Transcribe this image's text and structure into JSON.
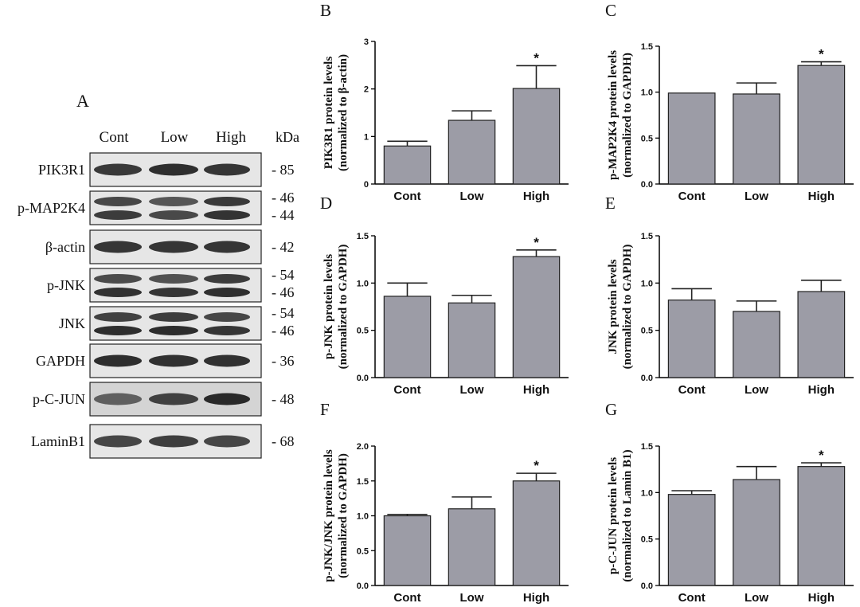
{
  "blot": {
    "panel_letter": "A",
    "lanes": [
      "Cont",
      "Low",
      "High"
    ],
    "unit": "kDa",
    "rows": [
      {
        "label": "PIK3R1",
        "markers": [
          "85"
        ],
        "bands": 1
      },
      {
        "label": "p-MAP2K4",
        "markers": [
          "46",
          "44"
        ],
        "bands": 2
      },
      {
        "label": "β-actin",
        "markers": [
          "42"
        ],
        "bands": 1
      },
      {
        "label": "p-JNK",
        "markers": [
          "54",
          "46"
        ],
        "bands": 2
      },
      {
        "label": "JNK",
        "markers": [
          "54",
          "46"
        ],
        "bands": 2
      },
      {
        "label": "GAPDH",
        "markers": [
          "36"
        ],
        "bands": 1
      },
      {
        "label": "p-C-JUN",
        "markers": [
          "48"
        ],
        "bands": 1
      },
      {
        "label": "LaminB1",
        "markers": [
          "68"
        ],
        "bands": 1
      }
    ]
  },
  "colors": {
    "bar_fill": "#9c9ca6",
    "axis": "#000000",
    "text": "#111111"
  },
  "chart_data": [
    {
      "panel": "B",
      "type": "bar",
      "categories": [
        "Cont",
        "Low",
        "High"
      ],
      "values": [
        0.8,
        1.34,
        2.01
      ],
      "errors": [
        0.1,
        0.2,
        0.48
      ],
      "significance": [
        "",
        "",
        "*"
      ],
      "ylabel": [
        "PIK3R1 protein levels",
        "(normalized to β-actin)"
      ],
      "ylim": [
        0,
        3
      ],
      "yticks": [
        "0",
        "1",
        "2",
        "3"
      ]
    },
    {
      "panel": "C",
      "type": "bar",
      "categories": [
        "Cont",
        "Low",
        "High"
      ],
      "values": [
        0.99,
        0.98,
        1.29
      ],
      "errors": [
        0,
        0.12,
        0.04
      ],
      "significance": [
        "",
        "",
        "*"
      ],
      "ylabel": [
        "p-MAP2K4 protein levels",
        "(normalized to GAPDH)"
      ],
      "ylim": [
        0,
        1.5
      ],
      "yticks": [
        "0.0",
        "0.5",
        "1.0",
        "1.5"
      ]
    },
    {
      "panel": "D",
      "type": "bar",
      "categories": [
        "Cont",
        "Low",
        "High"
      ],
      "values": [
        0.86,
        0.79,
        1.28
      ],
      "errors": [
        0.14,
        0.08,
        0.07
      ],
      "significance": [
        "",
        "",
        "*"
      ],
      "ylabel": [
        "p-JNK protein levels",
        "(normalized to GAPDH)"
      ],
      "ylim": [
        0,
        1.5
      ],
      "yticks": [
        "0.0",
        "0.5",
        "1.0",
        "1.5"
      ]
    },
    {
      "panel": "E",
      "type": "bar",
      "categories": [
        "Cont",
        "Low",
        "High"
      ],
      "values": [
        0.82,
        0.7,
        0.91
      ],
      "errors": [
        0.12,
        0.11,
        0.12
      ],
      "significance": [
        "",
        "",
        ""
      ],
      "ylabel": [
        "JNK protein levels",
        "(normalized to GAPDH)"
      ],
      "ylim": [
        0,
        1.5
      ],
      "yticks": [
        "0.0",
        "0.5",
        "1.0",
        "1.5"
      ]
    },
    {
      "panel": "F",
      "type": "bar",
      "categories": [
        "Cont",
        "Low",
        "High"
      ],
      "values": [
        1.0,
        1.1,
        1.5
      ],
      "errors": [
        0.02,
        0.17,
        0.11
      ],
      "significance": [
        "",
        "",
        "*"
      ],
      "ylabel": [
        "p-JNK/JNK protein levels",
        "(normalized to GAPDH)"
      ],
      "ylim": [
        0,
        2.0
      ],
      "yticks": [
        "0.0",
        "0.5",
        "1.0",
        "1.5",
        "2.0"
      ]
    },
    {
      "panel": "G",
      "type": "bar",
      "categories": [
        "Cont",
        "Low",
        "High"
      ],
      "values": [
        0.98,
        1.14,
        1.28
      ],
      "errors": [
        0.04,
        0.14,
        0.04
      ],
      "significance": [
        "",
        "",
        "*"
      ],
      "ylabel": [
        "p-C-JUN protein levels",
        "(normalized to Lamin B1)"
      ],
      "ylim": [
        0,
        1.5
      ],
      "yticks": [
        "0.0",
        "0.5",
        "1.0",
        "1.5"
      ]
    }
  ]
}
